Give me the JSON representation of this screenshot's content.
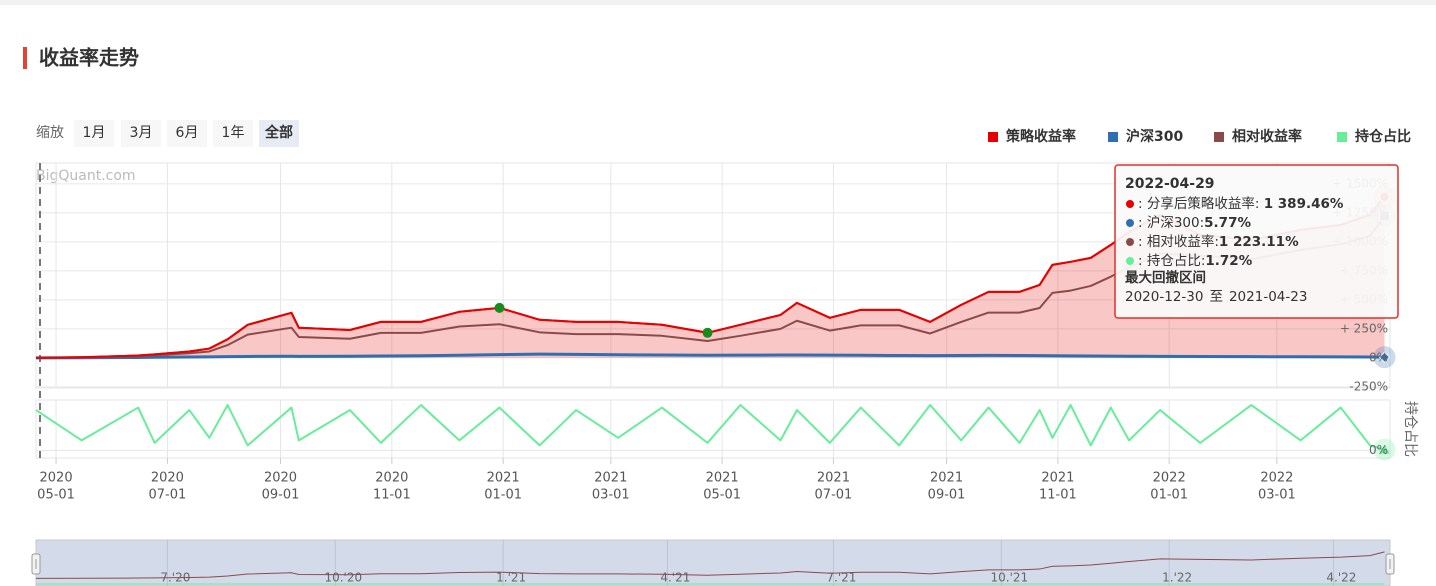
{
  "chart_data": {
    "type": "line",
    "title": "收益率走势",
    "watermark": "BigQuant.com",
    "zoom": {
      "label": "缩放",
      "buttons": [
        "1月",
        "3月",
        "6月",
        "1年",
        "全部"
      ],
      "active": 4
    },
    "legend": "top-right",
    "grid": true,
    "x": [
      "2020-04-20",
      "2020-05-15",
      "2020-06-15",
      "2020-06-24",
      "2020-07-13",
      "2020-07-24",
      "2020-08-03",
      "2020-08-14",
      "2020-09-07",
      "2020-09-11",
      "2020-10-09",
      "2020-10-26",
      "2020-11-17",
      "2020-12-08",
      "2020-12-30",
      "2021-01-21",
      "2021-02-10",
      "2021-03-05",
      "2021-03-29",
      "2021-04-23",
      "2021-05-11",
      "2021-06-02",
      "2021-06-11",
      "2021-06-29",
      "2021-07-16",
      "2021-08-06",
      "2021-08-23",
      "2021-09-09",
      "2021-09-24",
      "2021-10-11",
      "2021-10-22",
      "2021-10-29",
      "2021-11-08",
      "2021-11-19",
      "2021-11-30",
      "2021-12-10",
      "2021-12-27",
      "2022-01-18",
      "2022-02-15",
      "2022-03-14",
      "2022-04-05",
      "2022-04-21",
      "2022-04-29"
    ],
    "xlim": [
      "2020-04-20",
      "2022-05-02"
    ],
    "xticks": [
      {
        "value": "2020-05-01",
        "label": [
          "2020",
          "05-01"
        ]
      },
      {
        "value": "2020-07-01",
        "label": [
          "2020",
          "07-01"
        ]
      },
      {
        "value": "2020-09-01",
        "label": [
          "2020",
          "09-01"
        ]
      },
      {
        "value": "2020-11-01",
        "label": [
          "2020",
          "11-01"
        ]
      },
      {
        "value": "2021-01-01",
        "label": [
          "2021",
          "01-01"
        ]
      },
      {
        "value": "2021-03-01",
        "label": [
          "2021",
          "03-01"
        ]
      },
      {
        "value": "2021-05-01",
        "label": [
          "2021",
          "05-01"
        ]
      },
      {
        "value": "2021-07-01",
        "label": [
          "2021",
          "07-01"
        ]
      },
      {
        "value": "2021-09-01",
        "label": [
          "2021",
          "09-01"
        ]
      },
      {
        "value": "2021-11-01",
        "label": [
          "2021",
          "11-01"
        ]
      },
      {
        "value": "2022-01-01",
        "label": [
          "2022",
          "01-01"
        ]
      },
      {
        "value": "2022-03-01",
        "label": [
          "2022",
          "03-01"
        ]
      }
    ],
    "ylim": [
      -260,
      1680
    ],
    "yticks": [
      {
        "value": -250,
        "label": "-250%"
      },
      {
        "value": 0,
        "label": "0%"
      },
      {
        "value": 250,
        "label": "+ 250%"
      },
      {
        "value": 500,
        "label": "+ 500%"
      },
      {
        "value": 750,
        "label": "+ 750%"
      },
      {
        "value": 1000,
        "label": "+ 1000%"
      },
      {
        "value": 1250,
        "label": "+ 1250%"
      },
      {
        "value": 1500,
        "label": "+ 1500%"
      }
    ],
    "lower_ylim": [
      -15,
      100
    ],
    "lower_yticks": [
      {
        "value": 0,
        "label": "0%"
      }
    ],
    "lower_ylabel": "持仓占比",
    "series": [
      {
        "name": "策略收益率",
        "color": "#e60000",
        "area": true,
        "values": [
          0,
          5,
          20,
          30,
          55,
          80,
          160,
          285,
          388,
          260,
          240,
          310,
          310,
          397,
          431,
          328,
          310,
          310,
          285,
          216,
          285,
          370,
          474,
          345,
          414,
          414,
          310,
          457,
          569,
          569,
          629,
          802,
          828,
          862,
          974,
          1086,
          1233,
          1060,
          1017,
          1103,
          1146,
          1233,
          1389.46
        ]
      },
      {
        "name": "沪深300",
        "color": "#2f6fb0",
        "values": [
          0,
          1,
          3,
          5,
          7,
          8,
          10,
          12,
          14,
          13,
          14,
          16,
          18,
          22,
          28,
          32,
          30,
          27,
          24,
          22,
          23,
          24,
          25,
          23,
          22,
          20,
          19,
          20,
          21,
          20,
          19,
          18,
          17,
          16,
          15,
          14,
          13,
          12,
          10,
          9,
          8,
          7,
          5.77
        ]
      },
      {
        "name": "相对收益率",
        "color": "#8b4a4a",
        "values": [
          0,
          3,
          15,
          22,
          40,
          55,
          110,
          200,
          260,
          180,
          165,
          215,
          215,
          270,
          290,
          220,
          205,
          205,
          190,
          145,
          190,
          250,
          320,
          235,
          280,
          280,
          210,
          310,
          390,
          390,
          430,
          560,
          580,
          620,
          700,
          780,
          900,
          880,
          850,
          930,
          980,
          1050,
          1223.11
        ]
      },
      {
        "name": "持仓占比",
        "color": "#66ee99",
        "pane": "lower",
        "values": [
          80,
          20,
          85,
          15,
          80,
          25,
          90,
          10,
          85,
          20,
          80,
          15,
          90,
          20,
          85,
          10,
          80,
          25,
          85,
          15,
          90,
          20,
          80,
          15,
          85,
          10,
          90,
          20,
          85,
          15,
          80,
          25,
          90,
          10,
          85,
          20,
          80,
          15,
          90,
          20,
          85,
          10,
          1.72
        ]
      }
    ],
    "drawdown": {
      "title": "最大回撤区间",
      "start": "2020-12-30",
      "sep": "至",
      "end": "2021-04-23",
      "color": "#1a8a1a"
    },
    "tooltip": {
      "date": "2022-04-29",
      "rows": [
        {
          "label": ": 分享后策略收益率: ",
          "value": "1 389.46%"
        },
        {
          "label": ": 沪深300:",
          "value": "5.77%"
        },
        {
          "label": ": 相对收益率:",
          "value": "1 223.11%"
        },
        {
          "label": ": 持仓占比:",
          "value": "1.72%"
        }
      ]
    },
    "navigator": {
      "ticks": [
        {
          "value": "2020-07-01",
          "label": "7.'20"
        },
        {
          "value": "2020-10-01",
          "label": "10.'20"
        },
        {
          "value": "2021-01-01",
          "label": "1.'21"
        },
        {
          "value": "2021-04-01",
          "label": "4.'21"
        },
        {
          "value": "2021-07-01",
          "label": "7.'21"
        },
        {
          "value": "2021-10-01",
          "label": "10.'21"
        },
        {
          "value": "2022-01-01",
          "label": "1.'22"
        },
        {
          "value": "2022-04-01",
          "label": "4.'22"
        }
      ]
    }
  }
}
